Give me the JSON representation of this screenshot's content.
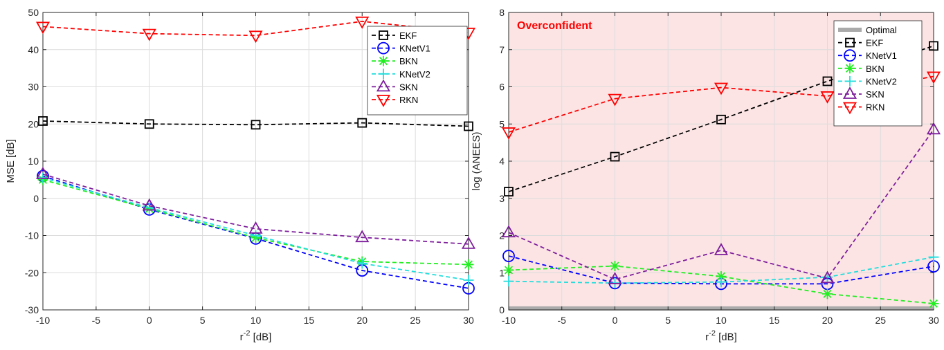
{
  "chart_data": [
    {
      "type": "line",
      "title": "",
      "xlabel": "r",
      "xlabel_sup": "-2",
      "xlabel_suffix": " [dB]",
      "ylabel": "MSE [dB]",
      "xlim": [
        -10,
        30
      ],
      "ylim": [
        -30,
        50
      ],
      "xticks": [
        "-10",
        "-5",
        "0",
        "5",
        "10",
        "15",
        "20",
        "25",
        "30"
      ],
      "yticks": [
        "-30",
        "-20",
        "-10",
        "0",
        "10",
        "20",
        "30",
        "40",
        "50"
      ],
      "grid": true,
      "legend_position": "top-right",
      "x": [
        -10,
        0,
        10,
        20,
        30
      ],
      "series": [
        {
          "name": "EKF",
          "color": "#000000",
          "marker": "square",
          "values": [
            20.8,
            20.0,
            19.8,
            20.3,
            19.4
          ]
        },
        {
          "name": "KNetV1",
          "color": "#0000ff",
          "marker": "circle",
          "values": [
            6.0,
            -3.0,
            -10.8,
            -19.4,
            -24.2
          ]
        },
        {
          "name": "BKN",
          "color": "#22ee22",
          "marker": "asterisk",
          "values": [
            5.0,
            -2.8,
            -10.6,
            -17.0,
            -17.8
          ]
        },
        {
          "name": "KNetV2",
          "color": "#22dddd",
          "marker": "plus",
          "values": [
            5.5,
            -2.5,
            -10.0,
            -17.5,
            -22.0
          ]
        },
        {
          "name": "SKN",
          "color": "#7e1e9c",
          "marker": "triangle-up",
          "values": [
            6.5,
            -2.0,
            -8.2,
            -10.5,
            -12.3
          ]
        },
        {
          "name": "RKN",
          "color": "#ff0000",
          "marker": "triangle-down",
          "values": [
            46.2,
            44.3,
            43.8,
            47.6,
            44.6
          ]
        }
      ]
    },
    {
      "type": "line",
      "title": "",
      "xlabel": "r",
      "xlabel_sup": "-2",
      "xlabel_suffix": " [dB]",
      "ylabel": "log (ANEES)",
      "xlim": [
        -10,
        30
      ],
      "ylim": [
        0,
        8
      ],
      "xticks": [
        "-10",
        "-5",
        "0",
        "5",
        "10",
        "15",
        "20",
        "25",
        "30"
      ],
      "yticks": [
        "0",
        "1",
        "2",
        "3",
        "4",
        "5",
        "6",
        "7",
        "8"
      ],
      "grid": true,
      "legend_position": "top-right",
      "annotation": {
        "text": "Overconfident",
        "color": "#ff0000",
        "background": "#fce4e4"
      },
      "optimal": {
        "name": "Optimal",
        "color": "#aaaaaa",
        "value": 0.04
      },
      "x": [
        -10,
        0,
        10,
        20,
        30
      ],
      "series": [
        {
          "name": "EKF",
          "color": "#000000",
          "marker": "square",
          "values": [
            3.18,
            4.12,
            5.12,
            6.15,
            7.1
          ]
        },
        {
          "name": "KNetV1",
          "color": "#0000ff",
          "marker": "circle",
          "values": [
            1.45,
            0.72,
            0.7,
            0.7,
            1.17
          ]
        },
        {
          "name": "BKN",
          "color": "#22ee22",
          "marker": "asterisk",
          "values": [
            1.07,
            1.18,
            0.9,
            0.43,
            0.17
          ]
        },
        {
          "name": "KNetV2",
          "color": "#22dddd",
          "marker": "plus",
          "values": [
            0.77,
            0.72,
            0.75,
            0.88,
            1.42
          ]
        },
        {
          "name": "SKN",
          "color": "#7e1e9c",
          "marker": "triangle-up",
          "values": [
            2.08,
            0.82,
            1.6,
            0.85,
            4.85
          ]
        },
        {
          "name": "RKN",
          "color": "#ff0000",
          "marker": "triangle-down",
          "values": [
            4.78,
            5.68,
            5.98,
            5.75,
            6.28
          ]
        }
      ]
    }
  ]
}
